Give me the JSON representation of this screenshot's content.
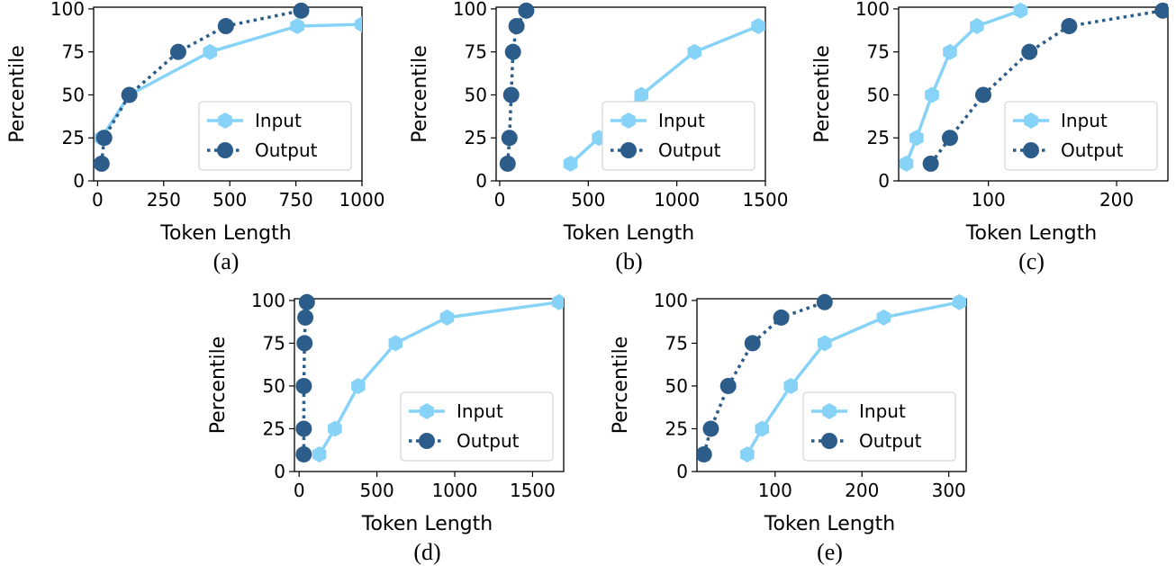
{
  "colors": {
    "input": "#87d3f8",
    "output": "#2c5d8a"
  },
  "chart_data": [
    {
      "type": "line",
      "caption": "(a)",
      "xlabel": "Token Length",
      "ylabel": "Percentile",
      "xlim": [
        -15,
        1000
      ],
      "ylim": [
        0,
        101
      ],
      "xticks": [
        0,
        250,
        500,
        750,
        1000
      ],
      "yticks": [
        0,
        25,
        50,
        75,
        100
      ],
      "legend_position": "lower-right",
      "series": [
        {
          "name": "Input",
          "style": "solid",
          "marker": "hexagon",
          "x": [
            15,
            120,
            425,
            755,
            1000
          ],
          "y": [
            25,
            50,
            75,
            90,
            91
          ]
        },
        {
          "name": "Output",
          "style": "dotted",
          "marker": "circle",
          "x": [
            15,
            25,
            120,
            305,
            485,
            770
          ],
          "y": [
            10,
            25,
            50,
            75,
            90,
            99
          ]
        }
      ]
    },
    {
      "type": "line",
      "caption": "(b)",
      "xlabel": "Token Length",
      "ylabel": "Percentile",
      "xlim": [
        -20,
        1500
      ],
      "ylim": [
        0,
        101
      ],
      "xticks": [
        0,
        500,
        1000,
        1500
      ],
      "yticks": [
        0,
        25,
        50,
        75,
        100
      ],
      "legend_position": "lower-right",
      "series": [
        {
          "name": "Input",
          "style": "solid",
          "marker": "hexagon",
          "x": [
            400,
            560,
            800,
            1100,
            1460
          ],
          "y": [
            10,
            25,
            50,
            75,
            90
          ]
        },
        {
          "name": "Output",
          "style": "dotted",
          "marker": "circle",
          "x": [
            45,
            55,
            65,
            75,
            95,
            150
          ],
          "y": [
            10,
            25,
            50,
            75,
            90,
            99
          ]
        }
      ]
    },
    {
      "type": "line",
      "caption": "(c)",
      "xlabel": "Token Length",
      "ylabel": "Percentile",
      "xlim": [
        30,
        240
      ],
      "ylim": [
        0,
        101
      ],
      "xticks": [
        100,
        200
      ],
      "yticks": [
        0,
        25,
        50,
        75,
        100
      ],
      "legend_position": "lower-right",
      "series": [
        {
          "name": "Input",
          "style": "solid",
          "marker": "hexagon",
          "x": [
            36,
            44,
            56,
            70,
            91,
            125
          ],
          "y": [
            10,
            25,
            50,
            75,
            90,
            99
          ]
        },
        {
          "name": "Output",
          "style": "dotted",
          "marker": "circle",
          "x": [
            55,
            70,
            96,
            132,
            163,
            236
          ],
          "y": [
            10,
            25,
            50,
            75,
            90,
            99
          ]
        }
      ]
    },
    {
      "type": "line",
      "caption": "(d)",
      "xlabel": "Token Length",
      "ylabel": "Percentile",
      "xlim": [
        -30,
        1700
      ],
      "ylim": [
        0,
        101
      ],
      "xticks": [
        0,
        500,
        1000,
        1500
      ],
      "yticks": [
        0,
        25,
        50,
        75,
        100
      ],
      "legend_position": "lower-right",
      "series": [
        {
          "name": "Input",
          "style": "solid",
          "marker": "hexagon",
          "x": [
            130,
            230,
            380,
            620,
            950,
            1670
          ],
          "y": [
            10,
            25,
            50,
            75,
            90,
            99
          ]
        },
        {
          "name": "Output",
          "style": "dotted",
          "marker": "circle",
          "x": [
            30,
            30,
            30,
            35,
            40,
            50
          ],
          "y": [
            10,
            25,
            50,
            75,
            90,
            99
          ]
        }
      ]
    },
    {
      "type": "line",
      "caption": "(e)",
      "xlabel": "Token Length",
      "ylabel": "Percentile",
      "xlim": [
        10,
        320
      ],
      "ylim": [
        0,
        101
      ],
      "xticks": [
        100,
        200,
        300
      ],
      "yticks": [
        0,
        25,
        50,
        75,
        100
      ],
      "legend_position": "lower-right",
      "series": [
        {
          "name": "Input",
          "style": "solid",
          "marker": "hexagon",
          "x": [
            68,
            85,
            118,
            157,
            225,
            312
          ],
          "y": [
            10,
            25,
            50,
            75,
            90,
            99
          ]
        },
        {
          "name": "Output",
          "style": "dotted",
          "marker": "circle",
          "x": [
            18,
            26,
            46,
            74,
            107,
            157
          ],
          "y": [
            10,
            25,
            50,
            75,
            90,
            99
          ]
        }
      ]
    }
  ]
}
